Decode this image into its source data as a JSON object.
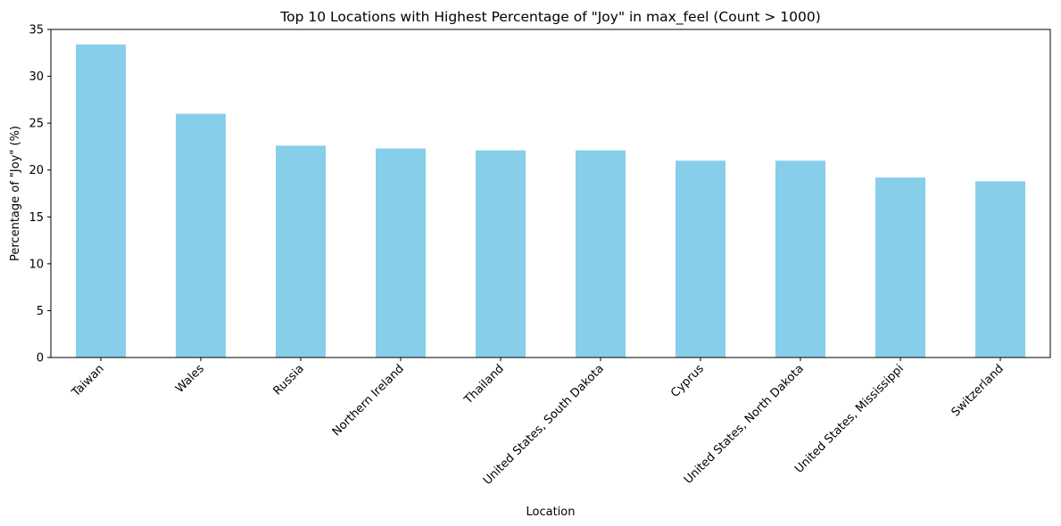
{
  "chart_data": {
    "type": "bar",
    "title": "Top 10 Locations with Highest Percentage of \"Joy\" in max_feel (Count > 1000)",
    "xlabel": "Location",
    "ylabel": "Percentage of \"Joy\" (%)",
    "categories": [
      "Taiwan",
      "Wales",
      "Russia",
      "Northern Ireland",
      "Thailand",
      "United States, South Dakota",
      "Cyprus",
      "United States, North Dakota",
      "United States, Mississippi",
      "Switzerland"
    ],
    "values": [
      33.4,
      26.0,
      22.6,
      22.3,
      22.1,
      22.1,
      21.0,
      21.0,
      19.2,
      18.8
    ],
    "ylim": [
      0,
      35
    ],
    "yticks": [
      0,
      5,
      10,
      15,
      20,
      25,
      30,
      35
    ],
    "bar_color": "#87CEEB",
    "grid": false,
    "legend": "none"
  }
}
